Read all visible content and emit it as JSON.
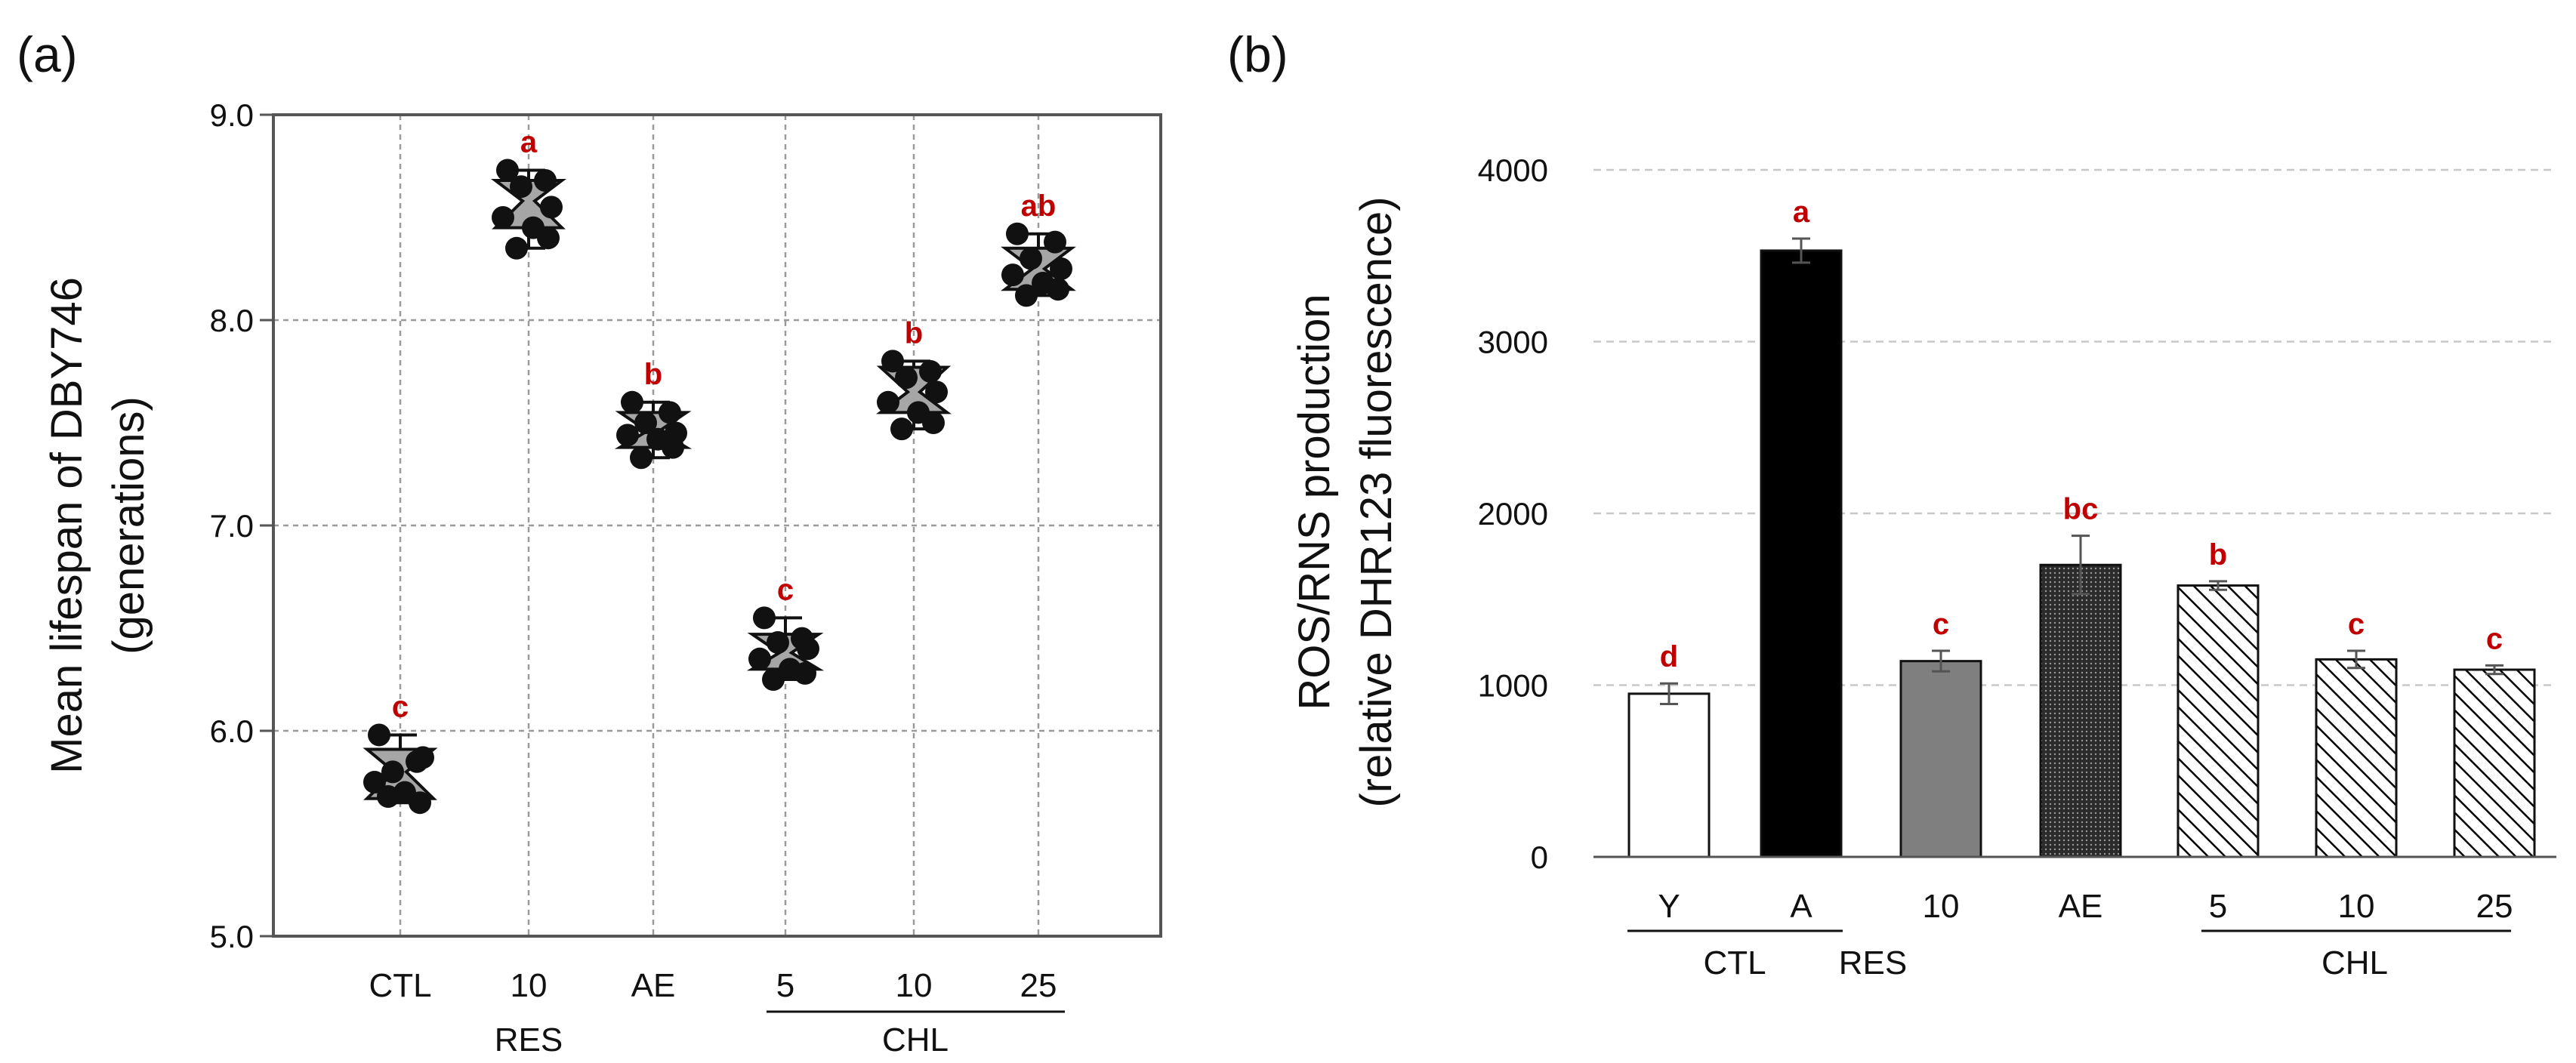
{
  "colors": {
    "significance": "#c00000",
    "point": "#111111",
    "box_fill": "#a6a6a6",
    "grid_a": "#9a9a9a",
    "grid_b": "#c8c8c8",
    "bar_black": "#000000",
    "bar_gray": "#7f7f7f"
  },
  "chart_data": [
    {
      "panel_label": "(a)",
      "type": "scatter",
      "title": "",
      "ylabel_line1": "Mean lifespan of DBY746",
      "ylabel_line2": "(generations)",
      "ylim": [
        5.0,
        9.0
      ],
      "yticks": [
        "5.0",
        "6.0",
        "7.0",
        "8.0",
        "9.0"
      ],
      "ytick_values": [
        5.0,
        6.0,
        7.0,
        8.0,
        9.0
      ],
      "grid": true,
      "categories": [
        "CTL",
        "10",
        "AE",
        "5",
        "10",
        "25"
      ],
      "group_labels": {
        "res": "RES",
        "chl": "CHL"
      },
      "series": [
        {
          "name": "CTL",
          "points": [
            5.98,
            5.85,
            5.8,
            5.87,
            5.75,
            5.7,
            5.65,
            5.68
          ],
          "mean": 5.8,
          "box": [
            5.67,
            5.91
          ],
          "whisker": [
            5.65,
            5.98
          ],
          "sig": "c"
        },
        {
          "name": "10 RES",
          "points": [
            8.73,
            8.68,
            8.65,
            8.55,
            8.5,
            8.45,
            8.4,
            8.35
          ],
          "mean": 8.58,
          "box": [
            8.45,
            8.68
          ],
          "whisker": [
            8.35,
            8.73
          ],
          "sig": "a"
        },
        {
          "name": "AE",
          "points": [
            7.6,
            7.55,
            7.5,
            7.45,
            7.44,
            7.42,
            7.38,
            7.33
          ],
          "mean": 7.46,
          "box": [
            7.38,
            7.55
          ],
          "whisker": [
            7.33,
            7.6
          ],
          "sig": "b"
        },
        {
          "name": "5 CHL",
          "points": [
            6.55,
            6.45,
            6.43,
            6.4,
            6.35,
            6.3,
            6.28,
            6.25
          ],
          "mean": 6.38,
          "box": [
            6.3,
            6.47
          ],
          "whisker": [
            6.25,
            6.55
          ],
          "sig": "c"
        },
        {
          "name": "10 CHL",
          "points": [
            7.8,
            7.75,
            7.72,
            7.65,
            7.6,
            7.55,
            7.5,
            7.47
          ],
          "mean": 7.65,
          "box": [
            7.55,
            7.77
          ],
          "whisker": [
            7.47,
            7.8
          ],
          "sig": "b"
        },
        {
          "name": "25 CHL",
          "points": [
            8.42,
            8.38,
            8.3,
            8.25,
            8.22,
            8.18,
            8.15,
            8.12
          ],
          "mean": 8.25,
          "box": [
            8.15,
            8.35
          ],
          "whisker": [
            8.12,
            8.42
          ],
          "sig": "ab"
        }
      ]
    },
    {
      "panel_label": "(b)",
      "type": "bar",
      "title": "",
      "ylabel_line1": "ROS/RNS production",
      "ylabel_line2": "(relative DHR123 fluorescence)",
      "ylim": [
        0,
        4000
      ],
      "yticks": [
        "0",
        "1000",
        "2000",
        "3000",
        "4000"
      ],
      "ytick_values": [
        0,
        1000,
        2000,
        3000,
        4000
      ],
      "grid": true,
      "categories": [
        "Y",
        "A",
        "10",
        "AE",
        "5",
        "10",
        "25"
      ],
      "group_labels": {
        "ctl": "CTL",
        "res": "RES",
        "chl": "CHL"
      },
      "values": [
        950,
        3530,
        1140,
        1700,
        1580,
        1150,
        1090
      ],
      "errors": [
        60,
        70,
        60,
        170,
        25,
        50,
        25
      ],
      "sig": [
        "d",
        "a",
        "c",
        "bc",
        "b",
        "c",
        "c"
      ],
      "fills": [
        "white",
        "black",
        "gray",
        "dots",
        "hatch",
        "hatch",
        "hatch"
      ]
    }
  ]
}
